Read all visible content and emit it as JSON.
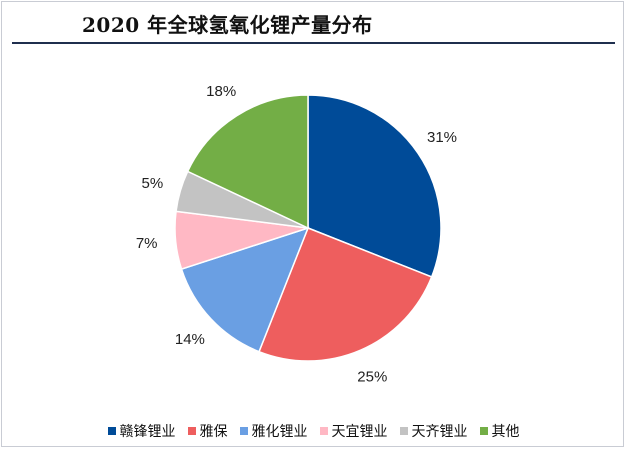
{
  "title": "2020 年全球氢氧化锂产量分布",
  "chart_data": {
    "type": "pie",
    "title": "2020 年全球氢氧化锂产量分布",
    "categories": [
      "赣锋锂业",
      "雅保",
      "雅化锂业",
      "天宜锂业",
      "天齐锂业",
      "其他"
    ],
    "values": [
      31,
      25,
      14,
      7,
      5,
      18
    ],
    "value_labels": [
      "31%",
      "25%",
      "14%",
      "7%",
      "5%",
      "18%"
    ],
    "colors": [
      "#004b98",
      "#ee5e5e",
      "#6a9fe3",
      "#ffb8c4",
      "#c3c3c3",
      "#73ae46"
    ],
    "start_angle_deg": 0,
    "direction": "clockwise",
    "legend_position": "bottom"
  }
}
